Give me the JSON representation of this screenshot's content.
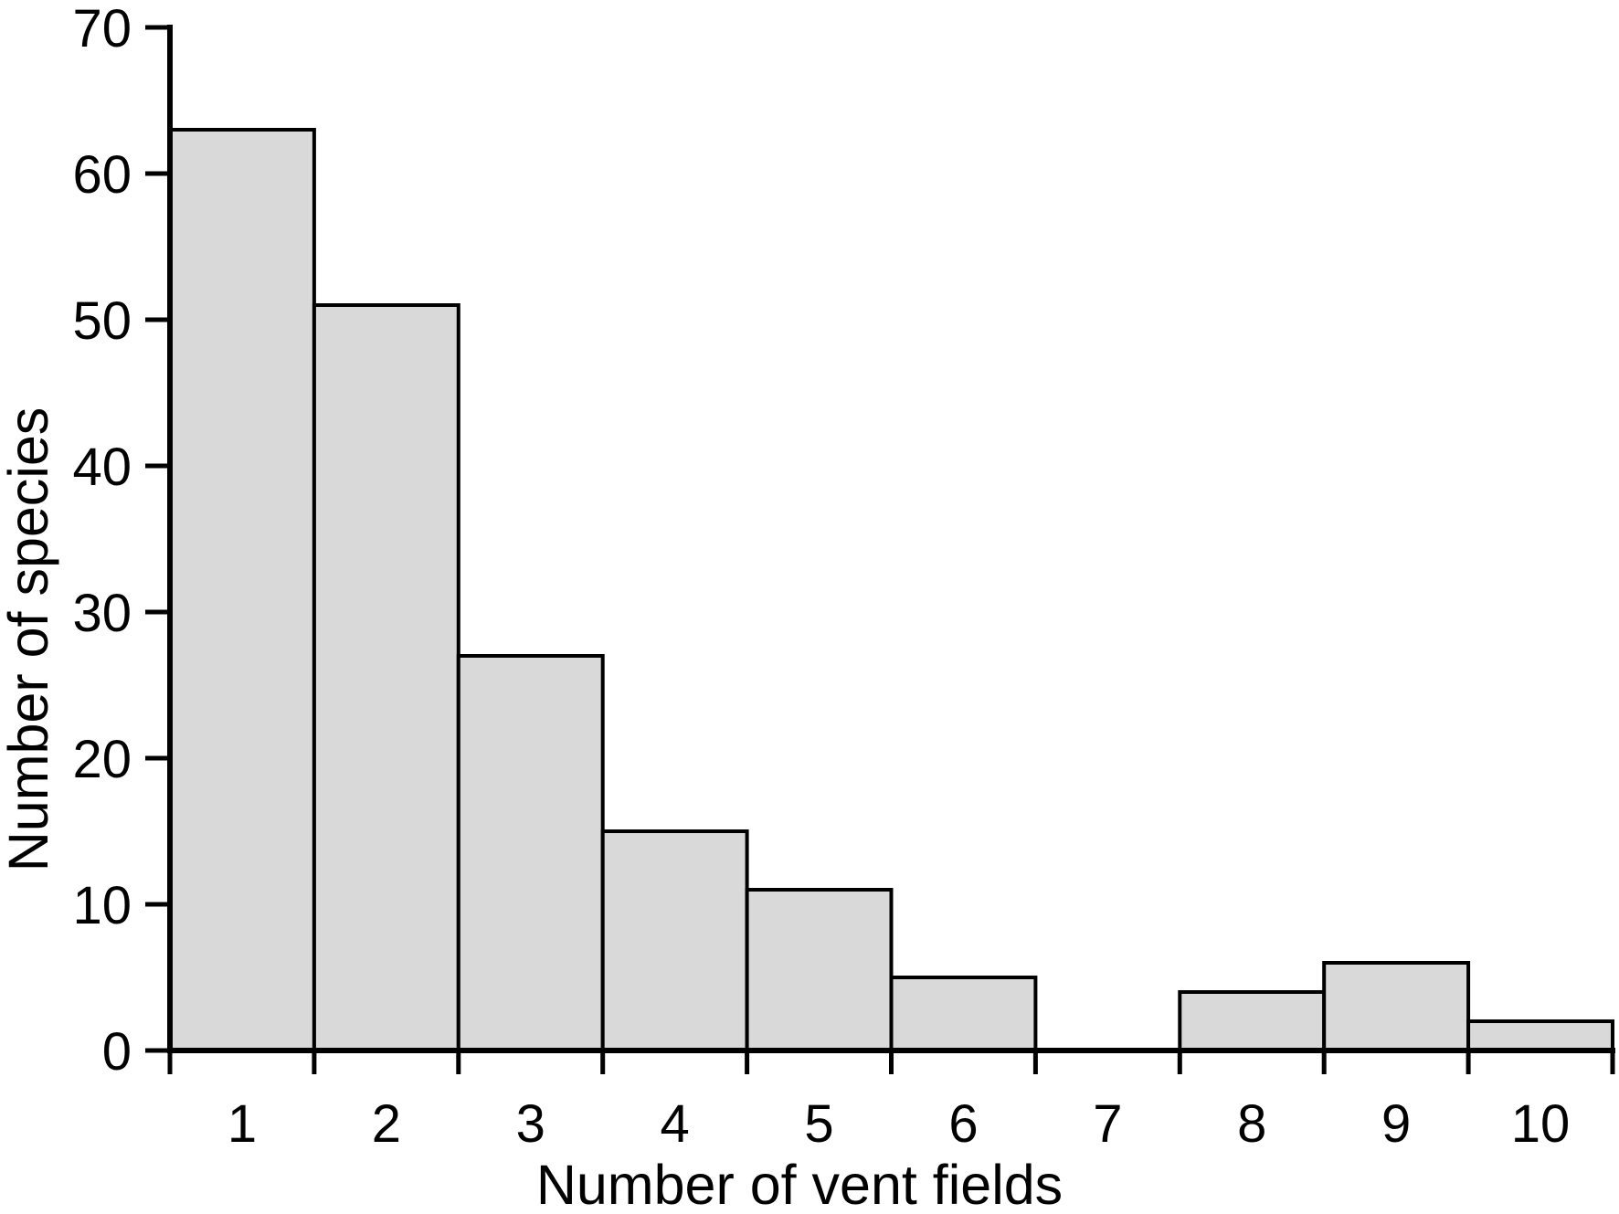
{
  "figure": {
    "background_color": "#ffffff",
    "text_color": "#000000"
  },
  "chart_data": {
    "type": "bar",
    "subtype": "histogram",
    "title": "",
    "xlabel": "Number of vent fields",
    "ylabel": "Number of species",
    "categories": [
      "1",
      "2",
      "3",
      "4",
      "5",
      "6",
      "7",
      "8",
      "9",
      "10"
    ],
    "values": [
      63,
      51,
      27,
      15,
      11,
      5,
      0,
      4,
      6,
      2
    ],
    "ylim": [
      0,
      70
    ],
    "ytick_step": 10,
    "ytick_labels": [
      "0",
      "10",
      "20",
      "30",
      "40",
      "50",
      "60",
      "70"
    ],
    "grid": false,
    "legend": null,
    "bar_fill_color": "#d9d9d9",
    "bar_border_color": "#000000",
    "axis_color": "#000000"
  }
}
